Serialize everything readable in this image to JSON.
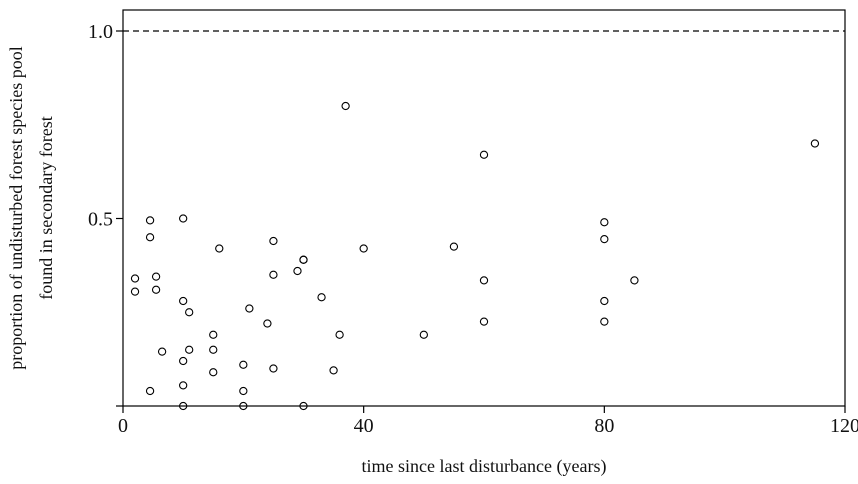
{
  "chart_data": {
    "type": "scatter",
    "xlabel": "time since last disturbance (years)",
    "ylabel_lines": [
      "proportion of undisturbed forest species pool",
      "found in secondary forest"
    ],
    "xlim": [
      0,
      120
    ],
    "ylim": [
      0,
      1
    ],
    "x_ticks": [
      0,
      40,
      80,
      120
    ],
    "y_ticks": [
      {
        "value": 0.5,
        "label": "0.5"
      },
      {
        "value": 1.0,
        "label": "1.0"
      }
    ],
    "x_tick_labels": [
      "0",
      "40",
      "80",
      "120"
    ],
    "reference_line": {
      "y": 1.0,
      "style": "dashed"
    },
    "grid": false,
    "marker": {
      "shape": "open-circle",
      "color": "#000000"
    },
    "points": [
      {
        "x": 2,
        "y": 0.34
      },
      {
        "x": 2,
        "y": 0.305
      },
      {
        "x": 4.5,
        "y": 0.495
      },
      {
        "x": 4.5,
        "y": 0.45
      },
      {
        "x": 4.5,
        "y": 0.04
      },
      {
        "x": 5.5,
        "y": 0.345
      },
      {
        "x": 5.5,
        "y": 0.31
      },
      {
        "x": 6.5,
        "y": 0.145
      },
      {
        "x": 10,
        "y": 0.5
      },
      {
        "x": 10,
        "y": 0.28
      },
      {
        "x": 10,
        "y": 0.12
      },
      {
        "x": 10,
        "y": 0.055
      },
      {
        "x": 10,
        "y": 0.0
      },
      {
        "x": 11,
        "y": 0.25
      },
      {
        "x": 11,
        "y": 0.15
      },
      {
        "x": 15,
        "y": 0.19
      },
      {
        "x": 15,
        "y": 0.15
      },
      {
        "x": 15,
        "y": 0.09
      },
      {
        "x": 16,
        "y": 0.42
      },
      {
        "x": 20,
        "y": 0.11
      },
      {
        "x": 20,
        "y": 0.04
      },
      {
        "x": 20,
        "y": 0.0
      },
      {
        "x": 21,
        "y": 0.26
      },
      {
        "x": 24,
        "y": 0.22
      },
      {
        "x": 25,
        "y": 0.44
      },
      {
        "x": 25,
        "y": 0.35
      },
      {
        "x": 25,
        "y": 0.1
      },
      {
        "x": 29,
        "y": 0.36
      },
      {
        "x": 30,
        "y": 0.39
      },
      {
        "x": 30,
        "y": 0.39
      },
      {
        "x": 30,
        "y": 0.0
      },
      {
        "x": 33,
        "y": 0.29
      },
      {
        "x": 35,
        "y": 0.095
      },
      {
        "x": 36,
        "y": 0.19
      },
      {
        "x": 37,
        "y": 0.8
      },
      {
        "x": 40,
        "y": 0.42
      },
      {
        "x": 50,
        "y": 0.19
      },
      {
        "x": 55,
        "y": 0.425
      },
      {
        "x": 60,
        "y": 0.67
      },
      {
        "x": 60,
        "y": 0.335
      },
      {
        "x": 60,
        "y": 0.225
      },
      {
        "x": 80,
        "y": 0.49
      },
      {
        "x": 80,
        "y": 0.445
      },
      {
        "x": 80,
        "y": 0.28
      },
      {
        "x": 80,
        "y": 0.225
      },
      {
        "x": 85,
        "y": 0.335
      },
      {
        "x": 115,
        "y": 0.7
      }
    ]
  }
}
